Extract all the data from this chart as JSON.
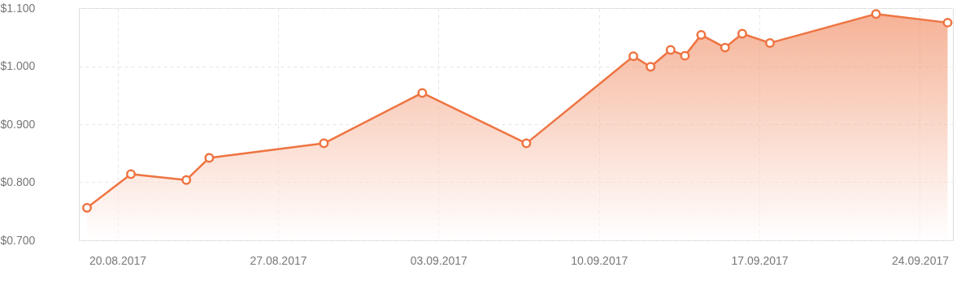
{
  "chart_data": {
    "type": "area",
    "x": [
      "2017-08-18T16:00",
      "2017-08-20T14:00",
      "2017-08-23T00:00",
      "2017-08-24T00:00",
      "2017-08-29T00:00",
      "2017-09-02T07:00",
      "2017-09-06T20:00",
      "2017-09-11T12:00",
      "2017-09-12T06:00",
      "2017-09-13T03:00",
      "2017-09-13T18:00",
      "2017-09-14T11:00",
      "2017-09-15T12:00",
      "2017-09-16T06:00",
      "2017-09-17T11:00",
      "2017-09-22T02:00",
      "2017-09-25T05:00"
    ],
    "series": [
      {
        "color": "#ee7442",
        "values": [
          0.756,
          0.814,
          0.804,
          0.842,
          0.867,
          0.954,
          0.867,
          1.017,
          0.999,
          1.028,
          1.018,
          1.054,
          1.032,
          1.056,
          1.04,
          1.09,
          1.075
        ]
      }
    ],
    "xlim": [
      "2017-08-18T07:30",
      "2017-09-25T10:30"
    ],
    "xticks": [
      {
        "value": "2017-08-20",
        "label": "20.08.2017"
      },
      {
        "value": "2017-08-27",
        "label": "27.08.2017"
      },
      {
        "value": "2017-09-03",
        "label": "03.09.2017"
      },
      {
        "value": "2017-09-10",
        "label": "10.09.2017"
      },
      {
        "value": "2017-09-17",
        "label": "17.09.2017"
      },
      {
        "value": "2017-09-24",
        "label": "24.09.2017"
      }
    ],
    "ylim": [
      0.7,
      1.1
    ],
    "yticks": [
      {
        "value": 0.7,
        "label": "$0.700"
      },
      {
        "value": 0.8,
        "label": "$0.800"
      },
      {
        "value": 0.9,
        "label": "$0.900"
      },
      {
        "value": 1.0,
        "label": "$1.000"
      },
      {
        "value": 1.1,
        "label": "$1.100"
      }
    ],
    "grid": true,
    "marker": "circle",
    "line_style": "solid"
  }
}
